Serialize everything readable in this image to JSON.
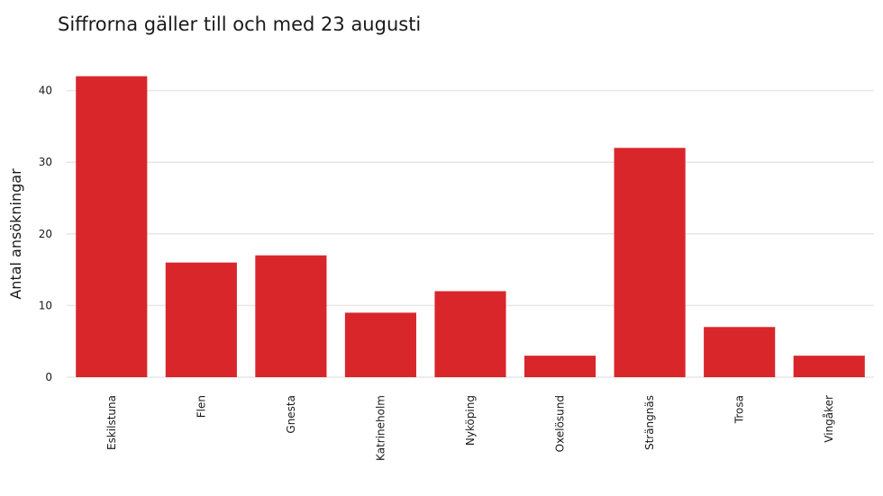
{
  "chart_data": {
    "type": "bar",
    "title": "Siffrorna gäller till och med 23 augusti",
    "xlabel": "",
    "ylabel": "Antal ansökningar",
    "categories": [
      "Eskilstuna",
      "Flen",
      "Gnesta",
      "Katrineholm",
      "Nyköping",
      "Oxelösund",
      "Strängnäs",
      "Trosa",
      "Vingåker"
    ],
    "values": [
      42,
      16,
      17,
      9,
      12,
      3,
      32,
      7,
      3
    ],
    "yticks": [
      "0",
      "10",
      "20",
      "30",
      "40"
    ],
    "ylim": [
      0,
      43
    ],
    "grid": true,
    "legend": "none",
    "bar_color": "#d9262b"
  }
}
